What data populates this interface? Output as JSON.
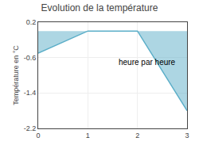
{
  "chart_data": {
    "type": "area",
    "title": "Evolution de la température",
    "xlabel": "heure par heure",
    "ylabel": "Température en °C",
    "x": [
      0,
      1,
      2,
      3
    ],
    "values": [
      -0.5,
      0.0,
      0.0,
      -1.8
    ],
    "color": "#5baec8",
    "xlim": [
      0,
      3
    ],
    "ylim": [
      -2.2,
      0.2
    ],
    "xticks": [
      0,
      1,
      2,
      3
    ],
    "yticks": [
      0.2,
      -0.6,
      -1.4,
      -2.2
    ],
    "grid": true
  }
}
